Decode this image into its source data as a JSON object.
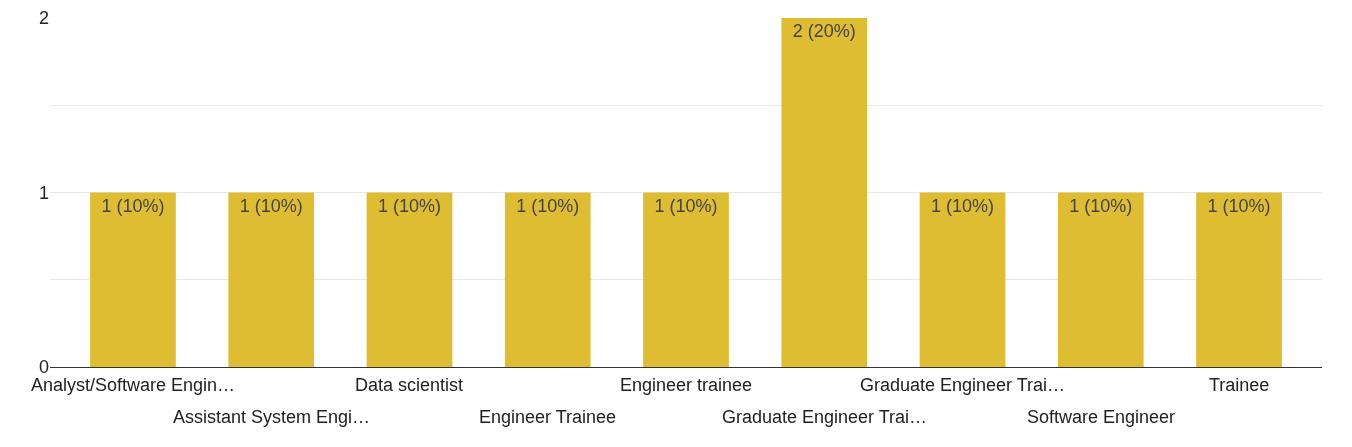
{
  "chart_data": {
    "type": "bar",
    "categories": [
      "Analyst/Software Engin…",
      "Assistant System Engi…",
      "Data scientist",
      "Engineer Trainee",
      "Engineer trainee",
      "Graduate Engineer Trai…",
      "Graduate Engineer Trai…",
      "Software Engineer",
      "Trainee"
    ],
    "values": [
      1,
      1,
      1,
      1,
      1,
      2,
      1,
      1,
      1
    ],
    "value_labels": [
      "1 (10%)",
      "1 (10%)",
      "1 (10%)",
      "1 (10%)",
      "1 (10%)",
      "2 (20%)",
      "1 (10%)",
      "1 (10%)",
      "1 (10%)"
    ],
    "color": "#dfbd32",
    "ylim": [
      0,
      2
    ],
    "yticks": [
      0,
      {
        "value": 0.5,
        "label": null
      },
      1,
      {
        "value": 1.5,
        "label": null
      },
      2
    ],
    "grid": "y",
    "legend": false
  }
}
